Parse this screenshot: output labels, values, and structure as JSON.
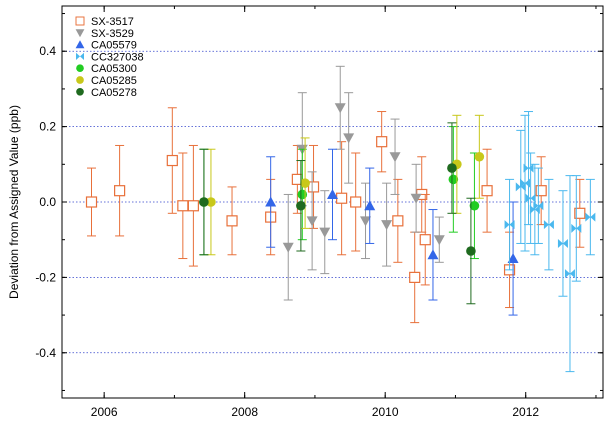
{
  "chart_data": {
    "type": "scatter",
    "title": "",
    "xlabel": "",
    "ylabel": "Deviation from Assigned Value (ppb)",
    "xlim": [
      2005.4,
      2013.1
    ],
    "ylim": [
      -0.52,
      0.52
    ],
    "x_ticks": [
      2006,
      2008,
      2010,
      2012
    ],
    "y_ticks": [
      -0.4,
      -0.2,
      0.0,
      0.2,
      0.4
    ],
    "y_tick_labels": [
      "-0.4",
      "-0.2",
      "0.0",
      "0.2",
      "0.4"
    ],
    "gridlines": "horizontal dotted at y ticks",
    "legend_position": "top-left",
    "error_bars": "vertical",
    "series": [
      {
        "name": "SX-3517",
        "marker": "open-square",
        "color": "#e8703a",
        "points": [
          {
            "x": 2005.82,
            "y": 0.0,
            "err": 0.09
          },
          {
            "x": 2006.22,
            "y": 0.03,
            "err": 0.12
          },
          {
            "x": 2006.97,
            "y": 0.11,
            "err": 0.14
          },
          {
            "x": 2007.12,
            "y": -0.01,
            "err": 0.14
          },
          {
            "x": 2007.27,
            "y": -0.01,
            "err": 0.16
          },
          {
            "x": 2007.82,
            "y": -0.05,
            "err": 0.09
          },
          {
            "x": 2008.37,
            "y": -0.04,
            "err": 0.1
          },
          {
            "x": 2008.75,
            "y": 0.06,
            "err": 0.09
          },
          {
            "x": 2008.98,
            "y": 0.04,
            "err": 0.11
          },
          {
            "x": 2009.38,
            "y": 0.01,
            "err": 0.15
          },
          {
            "x": 2009.58,
            "y": 0.0,
            "err": 0.13
          },
          {
            "x": 2009.95,
            "y": 0.16,
            "err": 0.08
          },
          {
            "x": 2010.18,
            "y": -0.05,
            "err": 0.11
          },
          {
            "x": 2010.42,
            "y": -0.2,
            "err": 0.12
          },
          {
            "x": 2010.52,
            "y": 0.02,
            "err": 0.1
          },
          {
            "x": 2010.57,
            "y": -0.1,
            "err": 0.12
          },
          {
            "x": 2011.45,
            "y": 0.03,
            "err": 0.11
          },
          {
            "x": 2011.77,
            "y": -0.18,
            "err": 0.1
          },
          {
            "x": 2012.22,
            "y": 0.03,
            "err": 0.09
          },
          {
            "x": 2012.77,
            "y": -0.03,
            "err": 0.09
          }
        ]
      },
      {
        "name": "SX-3529",
        "marker": "filled-triangle-down",
        "color": "#999999",
        "points": [
          {
            "x": 2008.62,
            "y": -0.12,
            "err": 0.14
          },
          {
            "x": 2008.82,
            "y": 0.14,
            "err": 0.15
          },
          {
            "x": 2008.96,
            "y": -0.05,
            "err": 0.13
          },
          {
            "x": 2009.14,
            "y": -0.08,
            "err": 0.11
          },
          {
            "x": 2009.36,
            "y": 0.25,
            "err": 0.11
          },
          {
            "x": 2009.48,
            "y": 0.17,
            "err": 0.12
          },
          {
            "x": 2009.72,
            "y": -0.05,
            "err": 0.1
          },
          {
            "x": 2010.02,
            "y": -0.06,
            "err": 0.11
          },
          {
            "x": 2010.14,
            "y": 0.12,
            "err": 0.1
          },
          {
            "x": 2010.44,
            "y": 0.01,
            "err": 0.09
          },
          {
            "x": 2010.77,
            "y": -0.1,
            "err": 0.06
          }
        ]
      },
      {
        "name": "CA05579",
        "marker": "filled-triangle-up",
        "color": "#3366e8",
        "points": [
          {
            "x": 2008.37,
            "y": 0.0,
            "err": 0.12
          },
          {
            "x": 2009.25,
            "y": 0.02,
            "err": 0.12
          },
          {
            "x": 2009.78,
            "y": -0.01,
            "err": 0.1
          },
          {
            "x": 2010.68,
            "y": -0.14,
            "err": 0.12
          },
          {
            "x": 2011.82,
            "y": -0.15,
            "err": 0.15
          }
        ]
      },
      {
        "name": "CC327038",
        "marker": "bowtie",
        "color": "#4ab8ee",
        "points": [
          {
            "x": 2011.77,
            "y": -0.06,
            "err": 0.12
          },
          {
            "x": 2011.93,
            "y": 0.04,
            "err": 0.15
          },
          {
            "x": 2011.99,
            "y": 0.05,
            "err": 0.18
          },
          {
            "x": 2012.04,
            "y": 0.09,
            "err": 0.15
          },
          {
            "x": 2012.07,
            "y": 0.01,
            "err": 0.12
          },
          {
            "x": 2012.13,
            "y": -0.02,
            "err": 0.12
          },
          {
            "x": 2012.18,
            "y": -0.01,
            "err": 0.1
          },
          {
            "x": 2012.33,
            "y": -0.06,
            "err": 0.12
          },
          {
            "x": 2012.53,
            "y": -0.11,
            "err": 0.14
          },
          {
            "x": 2012.63,
            "y": -0.19,
            "err": 0.26
          },
          {
            "x": 2012.72,
            "y": -0.07,
            "err": 0.14
          },
          {
            "x": 2012.92,
            "y": -0.04,
            "err": 0.1
          }
        ]
      },
      {
        "name": "CA05300",
        "marker": "filled-circle",
        "color": "#22cc22",
        "points": [
          {
            "x": 2007.42,
            "y": 0.0,
            "err": 0.14
          },
          {
            "x": 2008.82,
            "y": 0.02,
            "err": 0.12
          },
          {
            "x": 2010.97,
            "y": 0.06,
            "err": 0.14
          },
          {
            "x": 2011.27,
            "y": -0.01,
            "err": 0.14
          }
        ]
      },
      {
        "name": "CA05285",
        "marker": "filled-circle",
        "color": "#c8c81a",
        "points": [
          {
            "x": 2007.52,
            "y": 0.0,
            "err": 0.14
          },
          {
            "x": 2008.86,
            "y": 0.05,
            "err": 0.12
          },
          {
            "x": 2011.02,
            "y": 0.1,
            "err": 0.13
          },
          {
            "x": 2011.34,
            "y": 0.12,
            "err": 0.11
          }
        ]
      },
      {
        "name": "CA05278",
        "marker": "filled-circle",
        "color": "#1f6a1f",
        "points": [
          {
            "x": 2007.42,
            "y": 0.0,
            "err": 0.14
          },
          {
            "x": 2008.8,
            "y": -0.01,
            "err": 0.12
          },
          {
            "x": 2010.95,
            "y": 0.09,
            "err": 0.12
          },
          {
            "x": 2011.22,
            "y": -0.13,
            "err": 0.14
          }
        ]
      }
    ]
  }
}
